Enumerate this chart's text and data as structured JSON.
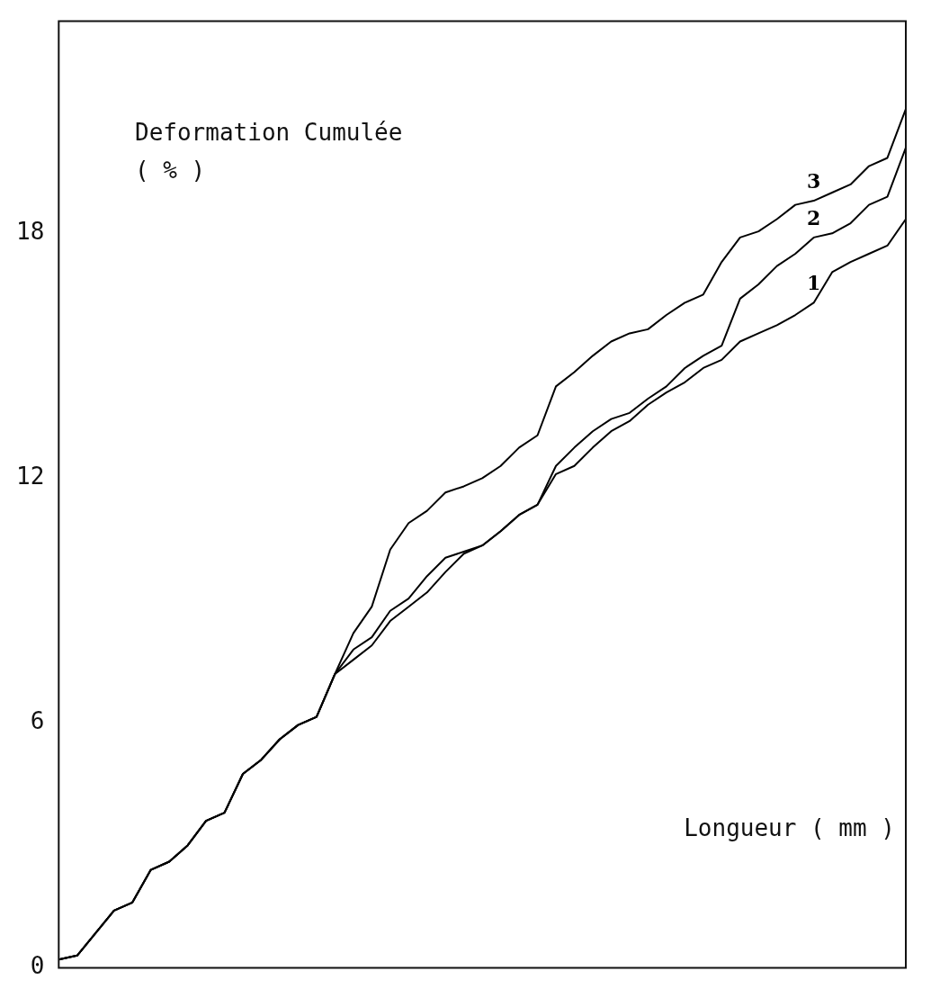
{
  "chart_data": {
    "type": "line",
    "xlabel": "Longueur ( mm )",
    "ylabel": "Deformation Cumulée ( % )",
    "categories": [
      null,
      null,
      null,
      null,
      null,
      null,
      null,
      null,
      null,
      null,
      null,
      null,
      null,
      null,
      null,
      null,
      null,
      null,
      null,
      null,
      null,
      null,
      null,
      null,
      null,
      null,
      null,
      null,
      null,
      null,
      null,
      null,
      null,
      null,
      null,
      null,
      null,
      null,
      null,
      null,
      null,
      null,
      null,
      null,
      null,
      null,
      null
    ],
    "series": [
      {
        "name": "1",
        "color": "#000000",
        "values": [
          0.2,
          0.3,
          0.85,
          1.4,
          1.6,
          2.4,
          2.6,
          3.0,
          3.6,
          3.8,
          4.75,
          5.1,
          5.6,
          5.95,
          6.15,
          7.2,
          7.55,
          7.9,
          8.5,
          8.85,
          9.2,
          9.7,
          10.15,
          10.35,
          10.7,
          11.1,
          11.35,
          12.1,
          12.3,
          12.75,
          13.15,
          13.4,
          13.8,
          14.1,
          14.35,
          14.7,
          14.9,
          15.35,
          15.55,
          15.75,
          16.0,
          16.3,
          17.05,
          17.3,
          17.5,
          17.7,
          18.35
        ]
      },
      {
        "name": "2",
        "color": "#000000",
        "values": [
          0.2,
          0.3,
          0.85,
          1.4,
          1.6,
          2.4,
          2.6,
          3.0,
          3.6,
          3.8,
          4.75,
          5.1,
          5.6,
          5.95,
          6.15,
          7.2,
          7.8,
          8.1,
          8.75,
          9.05,
          9.6,
          10.05,
          10.2,
          10.35,
          10.7,
          11.1,
          11.35,
          12.3,
          12.75,
          13.15,
          13.45,
          13.6,
          13.95,
          14.25,
          14.7,
          15.0,
          15.25,
          16.4,
          16.75,
          17.2,
          17.5,
          17.9,
          18.0,
          18.25,
          18.7,
          18.9,
          20.1
        ]
      },
      {
        "name": "3",
        "color": "#000000",
        "values": [
          0.2,
          0.3,
          0.85,
          1.4,
          1.6,
          2.4,
          2.6,
          3.0,
          3.6,
          3.8,
          4.75,
          5.1,
          5.6,
          5.95,
          6.15,
          7.2,
          8.2,
          8.85,
          10.25,
          10.9,
          11.2,
          11.65,
          11.8,
          12.0,
          12.3,
          12.75,
          13.05,
          14.25,
          14.6,
          15.0,
          15.35,
          15.55,
          15.65,
          16.0,
          16.3,
          16.5,
          17.3,
          17.9,
          18.05,
          18.35,
          18.7,
          18.8,
          19.0,
          19.2,
          19.65,
          19.85,
          21.05
        ]
      }
    ],
    "ylim": [
      0,
      23.2
    ],
    "yticks": [
      0,
      6,
      12,
      18
    ],
    "grid": false,
    "legend": false,
    "marker": "none",
    "line_style": "solid"
  }
}
